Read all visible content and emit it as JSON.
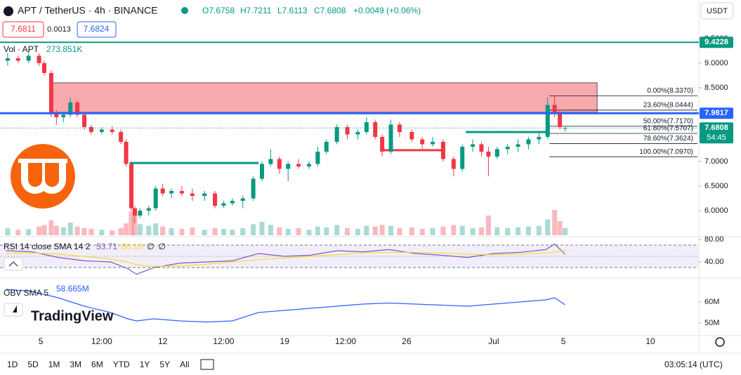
{
  "header": {
    "symbol": "APT / TetherUS · 4h · BINANCE",
    "ohlc": [
      "O7.6758",
      "H7.7211",
      "L7.6113",
      "C7.6808"
    ],
    "change": "+0.0049 (+0.06%)",
    "bid": "7.6811",
    "spread": "0.0013",
    "ask": "7.6824",
    "currency": "USDT",
    "volume_label": "Vol · APT",
    "volume_value": "273.851K",
    "logo": "TradingView"
  },
  "chart_data": [
    {
      "type": "candlestick",
      "x": [
        -1.9,
        -1.3,
        -0.7,
        -0.1,
        0.2,
        0.6,
        0.9,
        1.3,
        1.7,
        2.1,
        2.5,
        2.9,
        3.5,
        4.1,
        4.6,
        4.9,
        5.2,
        5.4,
        5.7,
        6.2,
        6.6,
        7.0,
        7.5,
        8.1,
        8.7,
        9.4,
        10.0,
        10.5,
        11.0,
        11.6,
        12.2,
        12.7,
        13.2,
        13.7,
        14.2,
        14.8,
        15.4,
        15.9,
        16.4,
        17.0,
        17.6,
        18.2,
        18.7,
        19.2,
        19.6,
        20.1,
        20.6,
        21.3,
        21.9,
        22.5,
        23.1,
        23.7,
        24.2,
        24.8,
        25.3,
        25.7,
        26.2,
        26.8,
        27.4,
        28.0,
        28.6,
        29.1,
        29.5,
        29.8,
        30.1
      ],
      "open": [
        9.05,
        9.1,
        9.05,
        9.15,
        9.0,
        8.8,
        8.0,
        7.9,
        7.95,
        8.2,
        7.95,
        7.7,
        7.6,
        7.65,
        7.6,
        7.4,
        6.95,
        6.05,
        5.9,
        6.0,
        6.05,
        6.45,
        6.35,
        6.4,
        6.35,
        6.3,
        6.35,
        6.1,
        6.15,
        6.2,
        6.25,
        6.65,
        6.95,
        7.05,
        6.85,
        6.95,
        6.9,
        6.95,
        7.2,
        7.4,
        7.7,
        7.55,
        7.6,
        7.8,
        7.5,
        7.2,
        7.75,
        7.6,
        7.45,
        7.35,
        7.4,
        7.05,
        6.85,
        7.3,
        7.35,
        7.2,
        7.1,
        7.25,
        7.3,
        7.35,
        7.45,
        7.5,
        8.15,
        8.0,
        7.6758
      ],
      "high": [
        9.2,
        9.15,
        9.25,
        9.2,
        9.05,
        8.85,
        8.05,
        8.0,
        8.3,
        8.25,
        8.0,
        7.75,
        7.7,
        7.72,
        7.65,
        7.45,
        7.0,
        6.1,
        6.05,
        6.1,
        6.5,
        6.55,
        6.45,
        6.5,
        6.45,
        6.4,
        6.4,
        6.2,
        6.25,
        6.3,
        6.7,
        7.0,
        7.25,
        7.1,
        7.0,
        7.05,
        7.0,
        7.3,
        7.45,
        7.75,
        7.75,
        7.65,
        7.9,
        7.85,
        7.55,
        7.85,
        7.8,
        7.65,
        7.5,
        7.5,
        7.45,
        7.1,
        7.35,
        7.45,
        7.4,
        7.3,
        7.3,
        7.35,
        7.45,
        7.5,
        7.6,
        8.3,
        8.34,
        8.05,
        7.7211
      ],
      "low": [
        8.95,
        9.0,
        9.0,
        8.95,
        8.75,
        7.9,
        7.75,
        7.8,
        7.9,
        7.9,
        7.65,
        7.55,
        7.55,
        7.55,
        7.35,
        6.9,
        6.0,
        5.75,
        5.85,
        5.9,
        6.0,
        6.3,
        6.25,
        6.3,
        6.2,
        6.2,
        6.05,
        6.05,
        6.1,
        6.05,
        6.2,
        6.6,
        6.9,
        6.75,
        6.6,
        6.85,
        6.85,
        6.9,
        7.15,
        7.35,
        7.45,
        7.45,
        7.55,
        7.45,
        7.1,
        7.15,
        7.5,
        7.4,
        7.25,
        7.3,
        7.0,
        6.7,
        6.8,
        7.2,
        7.1,
        6.7,
        7.05,
        7.15,
        7.2,
        7.25,
        7.35,
        7.45,
        7.9,
        7.65,
        7.6113
      ],
      "close": [
        9.1,
        9.05,
        9.15,
        9.0,
        8.8,
        8.0,
        7.9,
        7.95,
        8.2,
        7.95,
        7.7,
        7.6,
        7.65,
        7.6,
        7.4,
        6.95,
        6.05,
        5.9,
        6.0,
        6.05,
        6.45,
        6.35,
        6.4,
        6.35,
        6.3,
        6.35,
        6.1,
        6.15,
        6.2,
        6.25,
        6.65,
        6.95,
        7.05,
        6.85,
        6.95,
        6.9,
        6.95,
        7.2,
        7.4,
        7.7,
        7.55,
        7.6,
        7.8,
        7.5,
        7.2,
        7.75,
        7.6,
        7.45,
        7.35,
        7.4,
        7.05,
        6.85,
        7.3,
        7.35,
        7.2,
        7.1,
        7.25,
        7.3,
        7.35,
        7.45,
        7.5,
        8.15,
        8.0,
        7.7,
        7.6808
      ],
      "volume": [
        900,
        700,
        800,
        1100,
        1300,
        1900,
        1200,
        1000,
        1600,
        1100,
        900,
        800,
        700,
        600,
        900,
        1500,
        3000,
        2600,
        1400,
        1200,
        1500,
        1100,
        900,
        800,
        1000,
        700,
        900,
        800,
        700,
        900,
        1400,
        1700,
        1300,
        1000,
        800,
        900,
        700,
        1100,
        1000,
        1300,
        900,
        800,
        1200,
        1100,
        1300,
        1200,
        900,
        1000,
        800,
        900,
        1100,
        1300,
        1200,
        900,
        1000,
        2500,
        1000,
        900,
        1000,
        1100,
        1200,
        2000,
        3200,
        1800,
        900
      ],
      "volume_ylim": [
        0,
        4000
      ],
      "up_color": "#089981",
      "down_color": "#f23645",
      "xlim": [
        -2.34,
        37.78
      ],
      "ylim": [
        5.5,
        9.57
      ],
      "xticks": [
        {
          "value": 0,
          "label": "5"
        },
        {
          "value": 3.5,
          "label": "12:00"
        },
        {
          "value": 7,
          "label": "12"
        },
        {
          "value": 10.5,
          "label": "12:00"
        },
        {
          "value": 14,
          "label": "19"
        },
        {
          "value": 17.5,
          "label": "12:00"
        },
        {
          "value": 21,
          "label": "26"
        },
        {
          "value": 26,
          "label": "Jul"
        },
        {
          "value": 30,
          "label": "5"
        },
        {
          "value": 35,
          "label": "10"
        }
      ],
      "yticks": [
        {
          "value": 6,
          "label": "6.0000"
        },
        {
          "value": 6.5,
          "label": "6.5000"
        },
        {
          "value": 7,
          "label": "7.0000"
        },
        {
          "value": 7.5,
          "label": "7.5000"
        },
        {
          "value": 8,
          "label": "8.0000"
        },
        {
          "value": 8.5,
          "label": "8.5000"
        },
        {
          "value": 9,
          "label": "9.0000"
        },
        {
          "value": 9.5,
          "label": "9.5000"
        }
      ],
      "zone": {
        "x": [
          0.6,
          31.94
        ],
        "y": [
          8.0,
          8.6
        ],
        "color": "#f7a9ad"
      },
      "segments": [
        {
          "x": [
            5.1,
            12.5
          ],
          "y": 6.97,
          "color": "#089981"
        },
        {
          "x": [
            19.6,
            23.1
          ],
          "y": 7.23,
          "color": "#f23645"
        },
        {
          "x": [
            24.4,
            29.0
          ],
          "y": 7.6,
          "color": "#089981"
        }
      ],
      "fib": {
        "x": [
          29.2,
          37.7
        ],
        "levels": [
          8.337,
          8.0444,
          7.717,
          7.5707,
          7.3624,
          7.097
        ],
        "labels": [
          "0.00%(8.3370)",
          "23.60%(8.0444)",
          "50.00%(7.7170)",
          "61.80%(7.5707)",
          "78.60%(7.3624)",
          "100.00%(7.0970)"
        ]
      },
      "price_lines": [
        {
          "value": 9.4228,
          "color": "#089981"
        },
        {
          "value": 7.9817,
          "color": "#2962ff"
        },
        {
          "value": 7.6808,
          "color": "#089981",
          "countdown": "54:45"
        }
      ]
    },
    {
      "type": "line",
      "title": "RSI 14 close SMA 14 2",
      "legend_values": [
        "53.71",
        "60.10",
        "∅",
        "∅"
      ],
      "x": [
        -2,
        -0.5,
        1,
        2.5,
        4,
        5,
        5.5,
        6.5,
        8,
        9.5,
        11,
        12.5,
        14,
        15.5,
        17,
        18.5,
        20,
        21.5,
        23,
        24.5,
        26,
        27.5,
        29,
        29.5,
        30.1
      ],
      "series": [
        {
          "color": "#7e57c2",
          "values": [
            60,
            58,
            48,
            42,
            40,
            28,
            18,
            30,
            38,
            40,
            42,
            55,
            50,
            52,
            60,
            58,
            62,
            55,
            52,
            48,
            55,
            57,
            62,
            72,
            53.71
          ]
        },
        {
          "color": "#fdd835",
          "values": [
            55,
            56,
            54,
            50,
            45,
            40,
            35,
            32,
            33,
            36,
            40,
            44,
            47,
            50,
            53,
            56,
            57,
            57,
            56,
            54,
            53,
            54,
            56,
            58,
            60.1
          ]
        }
      ],
      "bands": [
        30,
        50,
        70
      ],
      "xlim": [
        -2.34,
        37.78
      ],
      "ylim": [
        12.5,
        83.75
      ],
      "yticks": [
        {
          "value": 80,
          "label": "80.00"
        },
        {
          "value": 40,
          "label": "40.00"
        }
      ]
    },
    {
      "type": "line",
      "title": "OBV SMA 5",
      "legend_values": [
        "58.665M"
      ],
      "x": [
        -2,
        -0.5,
        1,
        2.5,
        4,
        5,
        5.5,
        6.5,
        8,
        9.5,
        11,
        12.5,
        14,
        15.5,
        17,
        18.5,
        20,
        21.5,
        23,
        24.5,
        26,
        27.5,
        29,
        29.5,
        30.1
      ],
      "series": [
        {
          "color": "#2962ff",
          "values": [
            66,
            65,
            62,
            58,
            55,
            52,
            51,
            52,
            51,
            50.5,
            51,
            55,
            56,
            57,
            58,
            59,
            59.5,
            59,
            58.5,
            58,
            59,
            60,
            61,
            62,
            58.665
          ]
        }
      ],
      "xlim": [
        -2.34,
        37.78
      ],
      "ylim": [
        44,
        70.67
      ],
      "yticks": [
        {
          "value": 60,
          "label": "60M"
        },
        {
          "value": 50,
          "label": "50M"
        }
      ]
    }
  ],
  "toolbar": {
    "ranges": [
      "1D",
      "5D",
      "1M",
      "3M",
      "6M",
      "YTD",
      "1Y",
      "5Y",
      "All"
    ],
    "clock": "03:05:14 (UTC)"
  }
}
